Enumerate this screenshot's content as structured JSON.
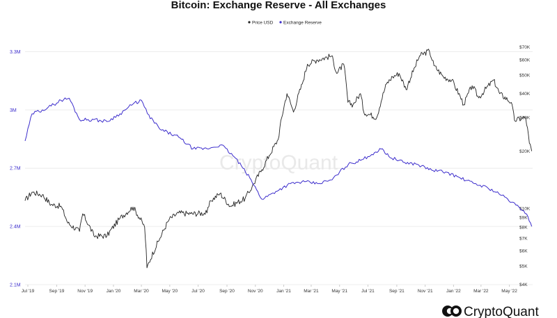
{
  "chart_data": {
    "type": "line",
    "title": "Bitcoin: Exchange Reserve - All Exchanges",
    "watermark": "CryptoQuant",
    "brand": "CryptoQuant",
    "legend_placement": "top-center",
    "grid": true,
    "colors": {
      "price": "#222222",
      "reserve": "#3b2ccc"
    },
    "x_ticks": [
      "Jul '19",
      "Sep '19",
      "Nov '19",
      "Jan '20",
      "Mar '20",
      "May '20",
      "Jul '20",
      "Sep '20",
      "Nov '20",
      "Jan '21",
      "Mar '21",
      "May '21",
      "Jul '21",
      "Sep '21",
      "Nov '21",
      "Jan '22",
      "Mar '22",
      "May '22"
    ],
    "y_left": {
      "ticks": [
        "2.1M",
        "2.4M",
        "2.7M",
        "3M",
        "3.3M"
      ],
      "values": [
        2100000,
        2400000,
        2700000,
        3000000,
        3300000
      ],
      "ylim": [
        2100000,
        3380000
      ]
    },
    "y_right": {
      "scale": "log",
      "ticks": [
        "$4K",
        "$5K",
        "$6K",
        "$7K",
        "$8K",
        "$9K",
        "$10K",
        "$20K",
        "$30K",
        "$40K",
        "$50K",
        "$60K",
        "$70K"
      ],
      "values": [
        4000,
        5000,
        6000,
        7000,
        8000,
        9000,
        10000,
        20000,
        30000,
        40000,
        50000,
        60000,
        70000
      ],
      "ylim": [
        4000,
        80000
      ]
    },
    "series": [
      {
        "name": "Price USD",
        "axis": "right",
        "x": [
          "2019-06-25",
          "2019-07-10",
          "2019-08-01",
          "2019-08-20",
          "2019-09-10",
          "2019-09-25",
          "2019-10-20",
          "2019-10-27",
          "2019-11-20",
          "2019-12-18",
          "2020-01-15",
          "2020-02-12",
          "2020-03-08",
          "2020-03-13",
          "2020-04-10",
          "2020-04-30",
          "2020-05-20",
          "2020-06-15",
          "2020-07-20",
          "2020-07-28",
          "2020-08-17",
          "2020-09-08",
          "2020-10-10",
          "2020-10-25",
          "2020-11-15",
          "2020-12-01",
          "2020-12-20",
          "2021-01-08",
          "2021-01-22",
          "2021-02-10",
          "2021-02-21",
          "2021-03-13",
          "2021-04-14",
          "2021-04-25",
          "2021-05-10",
          "2021-05-19",
          "2021-05-30",
          "2021-06-15",
          "2021-06-22",
          "2021-07-20",
          "2021-08-10",
          "2021-08-23",
          "2021-09-06",
          "2021-09-21",
          "2021-10-10",
          "2021-10-20",
          "2021-11-10",
          "2021-11-20",
          "2021-12-10",
          "2021-12-28",
          "2022-01-23",
          "2022-02-10",
          "2022-02-24",
          "2022-03-28",
          "2022-04-10",
          "2022-05-05",
          "2022-05-12",
          "2022-06-05",
          "2022-06-13",
          "2022-06-18"
        ],
        "values": [
          11000,
          12200,
          11800,
          10500,
          10300,
          8400,
          7600,
          9400,
          7200,
          7200,
          8900,
          10200,
          8000,
          4900,
          7000,
          8800,
          9500,
          9400,
          9500,
          11000,
          12000,
          10300,
          11300,
          13000,
          16000,
          19000,
          23000,
          40000,
          32000,
          45000,
          57000,
          60000,
          63000,
          51000,
          57000,
          36000,
          35000,
          40000,
          32000,
          30000,
          45000,
          49000,
          51000,
          42000,
          55000,
          63000,
          67000,
          56000,
          49000,
          47000,
          35000,
          44000,
          38000,
          47000,
          40000,
          36000,
          29000,
          30000,
          22000,
          20000
        ]
      },
      {
        "name": "Exchange Reserve",
        "axis": "left",
        "x": [
          "2019-06-25",
          "2019-07-10",
          "2019-08-01",
          "2019-08-20",
          "2019-09-10",
          "2019-09-28",
          "2019-10-20",
          "2019-11-20",
          "2019-12-18",
          "2020-01-15",
          "2020-02-12",
          "2020-03-01",
          "2020-03-14",
          "2020-04-10",
          "2020-05-20",
          "2020-06-20",
          "2020-07-20",
          "2020-08-20",
          "2020-09-20",
          "2020-10-20",
          "2020-11-15",
          "2020-12-15",
          "2021-01-15",
          "2021-02-15",
          "2021-03-15",
          "2021-04-15",
          "2021-05-01",
          "2021-05-20",
          "2021-06-15",
          "2021-07-01",
          "2021-07-15",
          "2021-08-01",
          "2021-08-15",
          "2021-09-15",
          "2021-10-15",
          "2021-11-15",
          "2021-12-15",
          "2022-01-15",
          "2022-02-15",
          "2022-03-15",
          "2022-04-15",
          "2022-05-15",
          "2022-06-01",
          "2022-06-10",
          "2022-06-18"
        ],
        "values": [
          2840000,
          2980000,
          3000000,
          3020000,
          3050000,
          3060000,
          2950000,
          2950000,
          2940000,
          2980000,
          3030000,
          3050000,
          2980000,
          2900000,
          2860000,
          2800000,
          2800000,
          2820000,
          2750000,
          2650000,
          2540000,
          2580000,
          2620000,
          2630000,
          2620000,
          2640000,
          2680000,
          2720000,
          2740000,
          2760000,
          2780000,
          2800000,
          2760000,
          2730000,
          2720000,
          2690000,
          2680000,
          2650000,
          2620000,
          2600000,
          2560000,
          2510000,
          2480000,
          2450000,
          2400000
        ]
      }
    ]
  }
}
